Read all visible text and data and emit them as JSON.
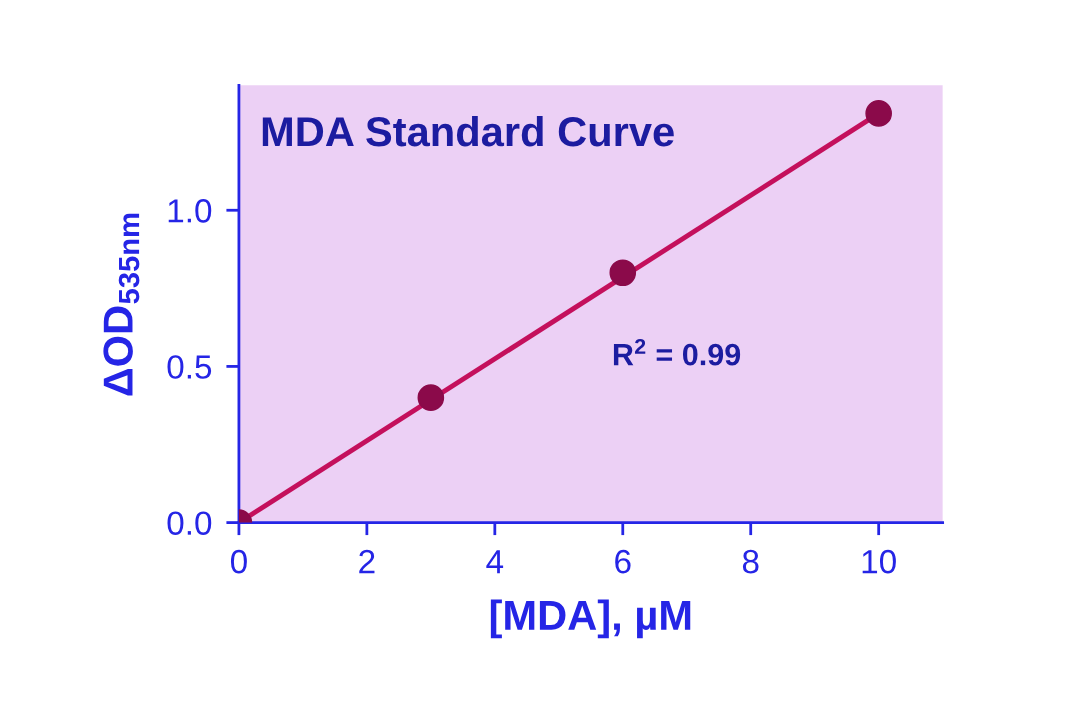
{
  "chart_data": {
    "type": "scatter",
    "title": "MDA Standard Curve",
    "xlabel": "[MDA], µM",
    "ylabel": "ΔOD$_{535nm}$",
    "annotations": [
      "R$^{2}$ = 0.99"
    ],
    "x": [
      0,
      3,
      6,
      10
    ],
    "series": [
      {
        "color": "#8b0a4a",
        "values": [
          0,
          0.4,
          0.8,
          1.31
        ],
        "marker": "circle"
      },
      {
        "type": "line",
        "color": "#c4105c",
        "x": [
          0,
          10
        ],
        "values": [
          0,
          1.31
        ],
        "line_style": "solid",
        "marker": "none"
      }
    ],
    "xlim": [
      0,
      11
    ],
    "ylim": [
      0,
      1.4
    ],
    "xticks": [
      0,
      2,
      4,
      6,
      8,
      10
    ],
    "yticks": [
      {
        "value": 0,
        "label": "0.0"
      },
      {
        "value": 0.5,
        "label": "0.5"
      },
      {
        "value": 1,
        "label": "1.0"
      }
    ],
    "grid": false,
    "legend": false
  }
}
